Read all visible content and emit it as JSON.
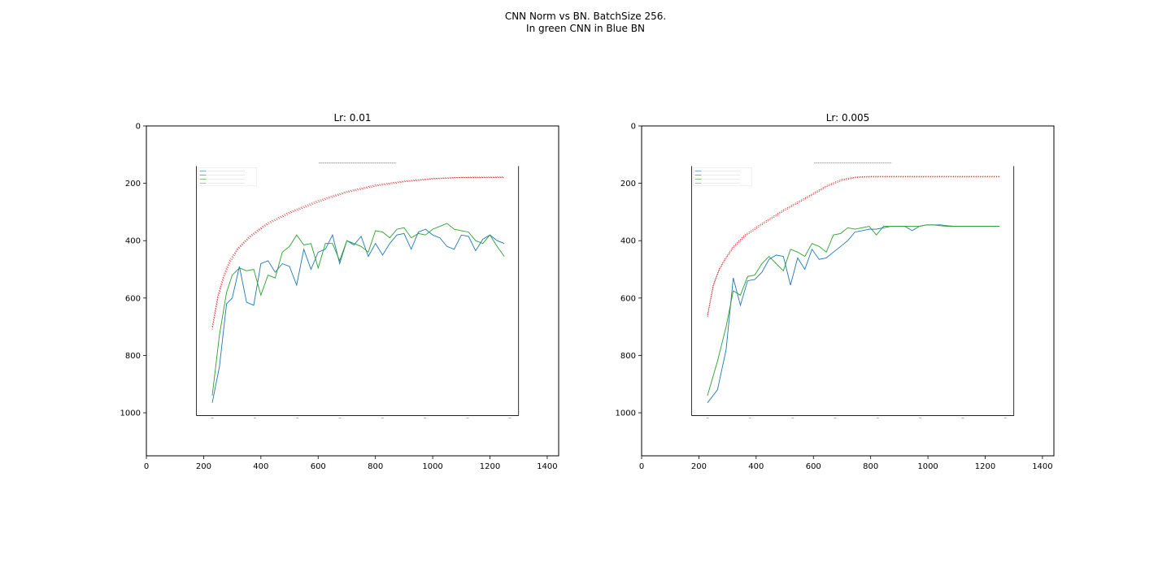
{
  "figure": {
    "suptitle_line1": "CNN Norm vs BN. BatchSize 256.",
    "suptitle_line2": "In green CNN in Blue BN"
  },
  "colors": {
    "validation_bn": "#1f77b4",
    "validation_cnn": "#2ca02c",
    "training": "#d62728",
    "axes": "#000000"
  },
  "chart_data": [
    {
      "type": "line",
      "title": "Lr: 0.01",
      "xlim": [
        0,
        1440
      ],
      "ylim": [
        1150,
        0
      ],
      "xticks": [
        0,
        200,
        400,
        600,
        800,
        1000,
        1200,
        1400
      ],
      "yticks": [
        0,
        200,
        400,
        600,
        800,
        1000
      ],
      "embedded_plot": {
        "extent": {
          "x": [
            175,
            1300
          ],
          "y": [
            140,
            1010
          ]
        },
        "legend_entries": 4,
        "series": [
          {
            "color": "#d62728",
            "x": [
              230,
              250,
              270,
              290,
              320,
              360,
              420,
              500,
              600,
              700,
              800,
              900,
              1000,
              1100,
              1250
            ],
            "y": [
              710,
              600,
              530,
              480,
              430,
              390,
              345,
              305,
              265,
              232,
              210,
              195,
              185,
              180,
              180
            ]
          },
          {
            "color": "#d62728",
            "x": [
              230,
              250,
              270,
              290,
              320,
              360,
              420,
              500,
              600,
              700,
              800,
              900,
              1000,
              1100,
              1250
            ],
            "y": [
              700,
              590,
              520,
              470,
              425,
              385,
              340,
              300,
              260,
              228,
              206,
              192,
              183,
              179,
              178
            ]
          },
          {
            "color": "#1f77b4",
            "x": [
              230,
              255,
              280,
              300,
              325,
              350,
              375,
              400,
              425,
              450,
              475,
              500,
              525,
              550,
              575,
              600,
              625,
              650,
              675,
              700,
              725,
              750,
              775,
              800,
              825,
              850,
              875,
              900,
              925,
              950,
              975,
              1000,
              1025,
              1050,
              1075,
              1100,
              1125,
              1150,
              1175,
              1200,
              1225,
              1250
            ],
            "y": [
              965,
              840,
              620,
              600,
              490,
              615,
              625,
              480,
              470,
              510,
              480,
              490,
              555,
              430,
              500,
              440,
              430,
              380,
              480,
              400,
              415,
              385,
              455,
              410,
              450,
              410,
              380,
              375,
              430,
              370,
              360,
              380,
              390,
              420,
              430,
              380,
              385,
              435,
              395,
              380,
              400,
              410
            ]
          },
          {
            "color": "#2ca02c",
            "x": [
              230,
              255,
              280,
              300,
              325,
              350,
              375,
              400,
              425,
              450,
              475,
              500,
              525,
              550,
              575,
              600,
              625,
              650,
              675,
              700,
              725,
              750,
              775,
              800,
              825,
              850,
              875,
              900,
              925,
              950,
              975,
              1000,
              1025,
              1050,
              1075,
              1100,
              1125,
              1150,
              1175,
              1200,
              1225,
              1250
            ],
            "y": [
              940,
              730,
              580,
              520,
              495,
              505,
              500,
              590,
              520,
              530,
              440,
              420,
              380,
              415,
              410,
              495,
              410,
              410,
              470,
              400,
              410,
              420,
              440,
              365,
              370,
              390,
              360,
              355,
              390,
              375,
              380,
              360,
              350,
              340,
              360,
              365,
              370,
              400,
              410,
              380,
              420,
              455
            ]
          }
        ]
      }
    },
    {
      "type": "line",
      "title": "Lr: 0.005",
      "xlim": [
        0,
        1440
      ],
      "ylim": [
        1150,
        0
      ],
      "xticks": [
        0,
        200,
        400,
        600,
        800,
        1000,
        1200,
        1400
      ],
      "yticks": [
        0,
        200,
        400,
        600,
        800,
        1000
      ],
      "embedded_plot": {
        "extent": {
          "x": [
            175,
            1300
          ],
          "y": [
            140,
            1010
          ]
        },
        "legend_entries": 4,
        "series": [
          {
            "color": "#d62728",
            "x": [
              230,
              250,
              270,
              290,
              320,
              360,
              420,
              500,
              580,
              650,
              700,
              750,
              800,
              900,
              1000,
              1100,
              1250
            ],
            "y": [
              665,
              560,
              505,
              470,
              425,
              385,
              345,
              295,
              250,
              210,
              190,
              180,
              178,
              178,
              178,
              178,
              178
            ]
          },
          {
            "color": "#d62728",
            "x": [
              230,
              250,
              270,
              290,
              320,
              360,
              420,
              500,
              580,
              650,
              700,
              750,
              800,
              900,
              1000,
              1100,
              1250
            ],
            "y": [
              660,
              555,
              500,
              465,
              420,
              380,
              340,
              290,
              246,
              206,
              186,
              178,
              176,
              176,
              176,
              176,
              176
            ]
          },
          {
            "color": "#1f77b4",
            "x": [
              230,
              265,
              295,
              320,
              345,
              370,
              395,
              420,
              445,
              470,
              495,
              520,
              545,
              570,
              595,
              620,
              645,
              670,
              695,
              720,
              745,
              770,
              795,
              820,
              845,
              870,
              895,
              920,
              945,
              970,
              995,
              1020,
              1045,
              1070,
              1095,
              1120,
              1145,
              1170,
              1195,
              1220,
              1250
            ],
            "y": [
              965,
              920,
              780,
              530,
              625,
              540,
              535,
              510,
              465,
              450,
              455,
              555,
              460,
              500,
              430,
              465,
              460,
              440,
              420,
              400,
              370,
              365,
              360,
              360,
              355,
              350,
              350,
              350,
              365,
              350,
              345,
              345,
              345,
              348,
              350,
              350,
              350,
              350,
              350,
              350,
              350
            ]
          },
          {
            "color": "#2ca02c",
            "x": [
              230,
              265,
              295,
              320,
              345,
              370,
              395,
              420,
              445,
              470,
              495,
              520,
              545,
              570,
              595,
              620,
              645,
              670,
              695,
              720,
              745,
              770,
              795,
              820,
              845,
              870,
              895,
              920,
              945,
              970,
              995,
              1020,
              1045,
              1070,
              1095,
              1120,
              1145,
              1170,
              1195,
              1220,
              1250
            ],
            "y": [
              940,
              820,
              700,
              575,
              590,
              525,
              520,
              480,
              455,
              480,
              505,
              430,
              440,
              455,
              410,
              420,
              440,
              380,
              375,
              355,
              360,
              355,
              350,
              380,
              350,
              350,
              350,
              350,
              350,
              350,
              345,
              345,
              348,
              350,
              350,
              350,
              350,
              350,
              350,
              350,
              350
            ]
          }
        ]
      }
    }
  ]
}
